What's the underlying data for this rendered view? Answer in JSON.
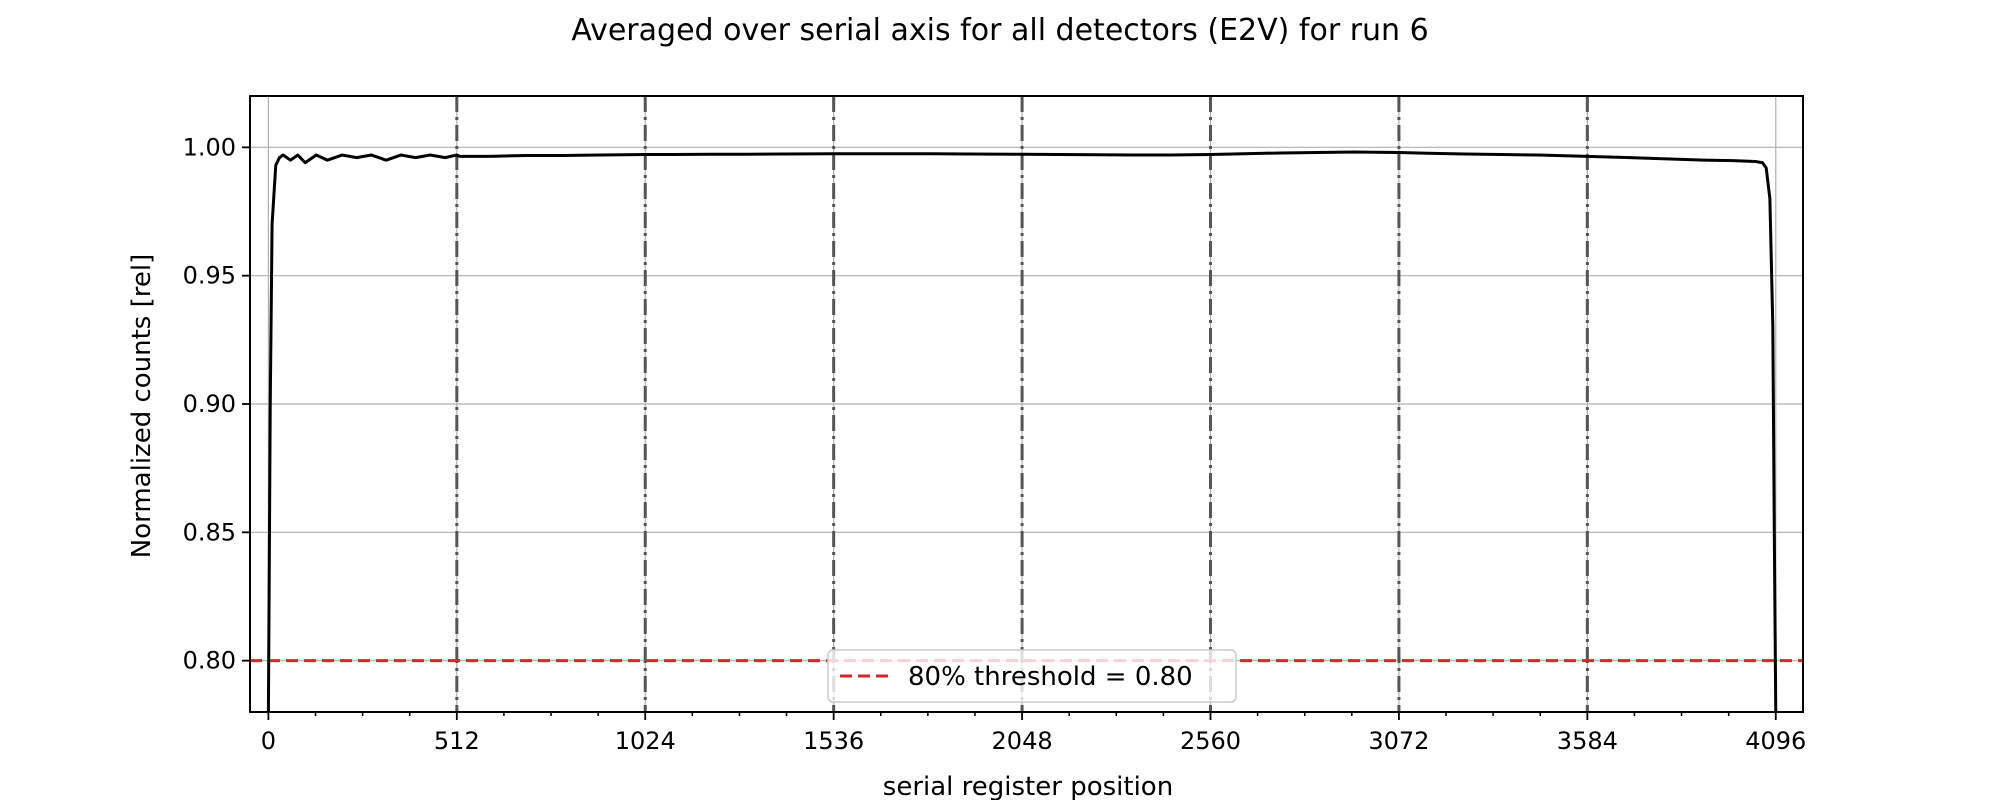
{
  "chart_data": {
    "type": "line",
    "title": "Averaged over serial axis for all detectors (E2V) for run 6",
    "xlabel": "serial register position",
    "ylabel": "Normalized counts [rel]",
    "xlim": [
      -50,
      4170
    ],
    "ylim": [
      0.78,
      1.02
    ],
    "xticks": [
      0,
      512,
      1024,
      1536,
      2048,
      2560,
      3072,
      3584,
      4096
    ],
    "xtick_labels": [
      "0",
      "512",
      "1024",
      "1536",
      "2048",
      "2560",
      "3072",
      "3584",
      "4096"
    ],
    "yticks": [
      0.8,
      0.85,
      0.9,
      0.95,
      1.0
    ],
    "ytick_labels": [
      "0.80",
      "0.85",
      "0.90",
      "0.95",
      "1.00"
    ],
    "grid": true,
    "segment_boundaries": [
      512,
      1024,
      1536,
      2048,
      2560,
      3072,
      3584
    ],
    "threshold": {
      "value": 0.8,
      "color": "#d62728",
      "label": "80% threshold = 0.80"
    },
    "legend_position": "lower-center",
    "series": [
      {
        "color": "#000000",
        "x": [
          0,
          5,
          10,
          20,
          30,
          40,
          60,
          80,
          100,
          130,
          160,
          200,
          240,
          280,
          320,
          360,
          400,
          440,
          480,
          511,
          520,
          600,
          700,
          800,
          900,
          1024,
          1100,
          1200,
          1300,
          1400,
          1536,
          1600,
          1700,
          1800,
          1900,
          2048,
          2150,
          2250,
          2350,
          2450,
          2560,
          2650,
          2750,
          2850,
          2950,
          3072,
          3150,
          3250,
          3350,
          3450,
          3584,
          3700,
          3800,
          3900,
          3980,
          4040,
          4060,
          4070,
          4080,
          4088,
          4092,
          4096
        ],
        "y": [
          0.78,
          0.9,
          0.97,
          0.993,
          0.996,
          0.997,
          0.995,
          0.997,
          0.994,
          0.997,
          0.995,
          0.997,
          0.996,
          0.997,
          0.995,
          0.997,
          0.996,
          0.997,
          0.996,
          0.997,
          0.9965,
          0.9965,
          0.9968,
          0.9968,
          0.997,
          0.9972,
          0.9972,
          0.9973,
          0.9973,
          0.9974,
          0.9975,
          0.9975,
          0.9975,
          0.9975,
          0.9974,
          0.9973,
          0.9972,
          0.9971,
          0.997,
          0.997,
          0.9972,
          0.9975,
          0.9978,
          0.998,
          0.9982,
          0.998,
          0.9977,
          0.9974,
          0.9972,
          0.997,
          0.9965,
          0.996,
          0.9955,
          0.995,
          0.9948,
          0.9945,
          0.994,
          0.992,
          0.98,
          0.93,
          0.85,
          0.78
        ]
      }
    ]
  }
}
